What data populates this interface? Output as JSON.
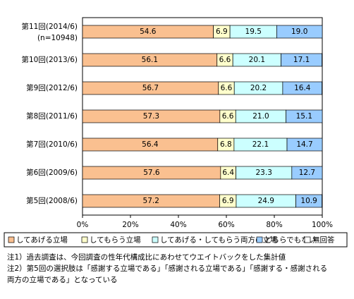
{
  "chart_data": {
    "type": "stacked-bar-horizontal",
    "categories": [
      "第11回(2014/6)",
      "第10回(2013/6)",
      "第9回(2012/6)",
      "第8回(2011/6)",
      "第7回(2010/6)",
      "第6回(2009/6)",
      "第5回(2008/6)"
    ],
    "sample_note": "(n=10948)",
    "series": [
      {
        "name": "してあげる立場",
        "color": "#fac090",
        "values": [
          54.6,
          56.1,
          56.7,
          57.3,
          56.4,
          57.6,
          57.2
        ],
        "value_labels": [
          "54.6",
          "56.1",
          "56.7",
          "57.3",
          "56.4",
          "57.6",
          "57.2"
        ]
      },
      {
        "name": "してもらう立場",
        "color": "#ffffcc",
        "values": [
          6.9,
          6.6,
          6.6,
          6.6,
          6.8,
          6.4,
          6.9
        ],
        "value_labels": [
          "6.9",
          "6.6",
          "6.6",
          "6.6",
          "6.8",
          "6.4",
          "6.9"
        ]
      },
      {
        "name": "してあげる・してもらう両方の立場",
        "color": "#ccffff",
        "values": [
          19.5,
          20.1,
          20.2,
          21.0,
          22.1,
          23.3,
          24.9
        ],
        "value_labels": [
          "19.5",
          "20.1",
          "20.2",
          "21.0",
          "22.1",
          "23.3",
          "24.9"
        ]
      },
      {
        "name": "どちらでもない",
        "color": "#99ccff",
        "values": [
          19.0,
          17.1,
          16.4,
          15.1,
          14.7,
          12.7,
          10.9
        ],
        "value_labels": [
          "19.0",
          "17.1",
          "16.4",
          "15.1",
          "14.7",
          "12.7",
          "10.9"
        ]
      },
      {
        "name": "無回答",
        "color": "#ffffff",
        "values": [
          0,
          0.1,
          0.1,
          0,
          0,
          0,
          0.1
        ]
      }
    ],
    "xlim": [
      0,
      100
    ],
    "xticks": [
      {
        "value": 0,
        "label": "0%"
      },
      {
        "value": 20,
        "label": "20%"
      },
      {
        "value": 40,
        "label": "40%"
      },
      {
        "value": 60,
        "label": "60%"
      },
      {
        "value": 80,
        "label": "80%"
      },
      {
        "value": 100,
        "label": "100%"
      }
    ],
    "legend": "bottom",
    "notes": [
      "注1）過去調査は、今回調査の性年代構成比にあわせてウエイトバックをした集計値",
      "注2）第5回の選択肢は「感謝する立場である」「感謝される立場である」「感謝する・感謝される",
      "両方の立場である」となっている"
    ]
  }
}
